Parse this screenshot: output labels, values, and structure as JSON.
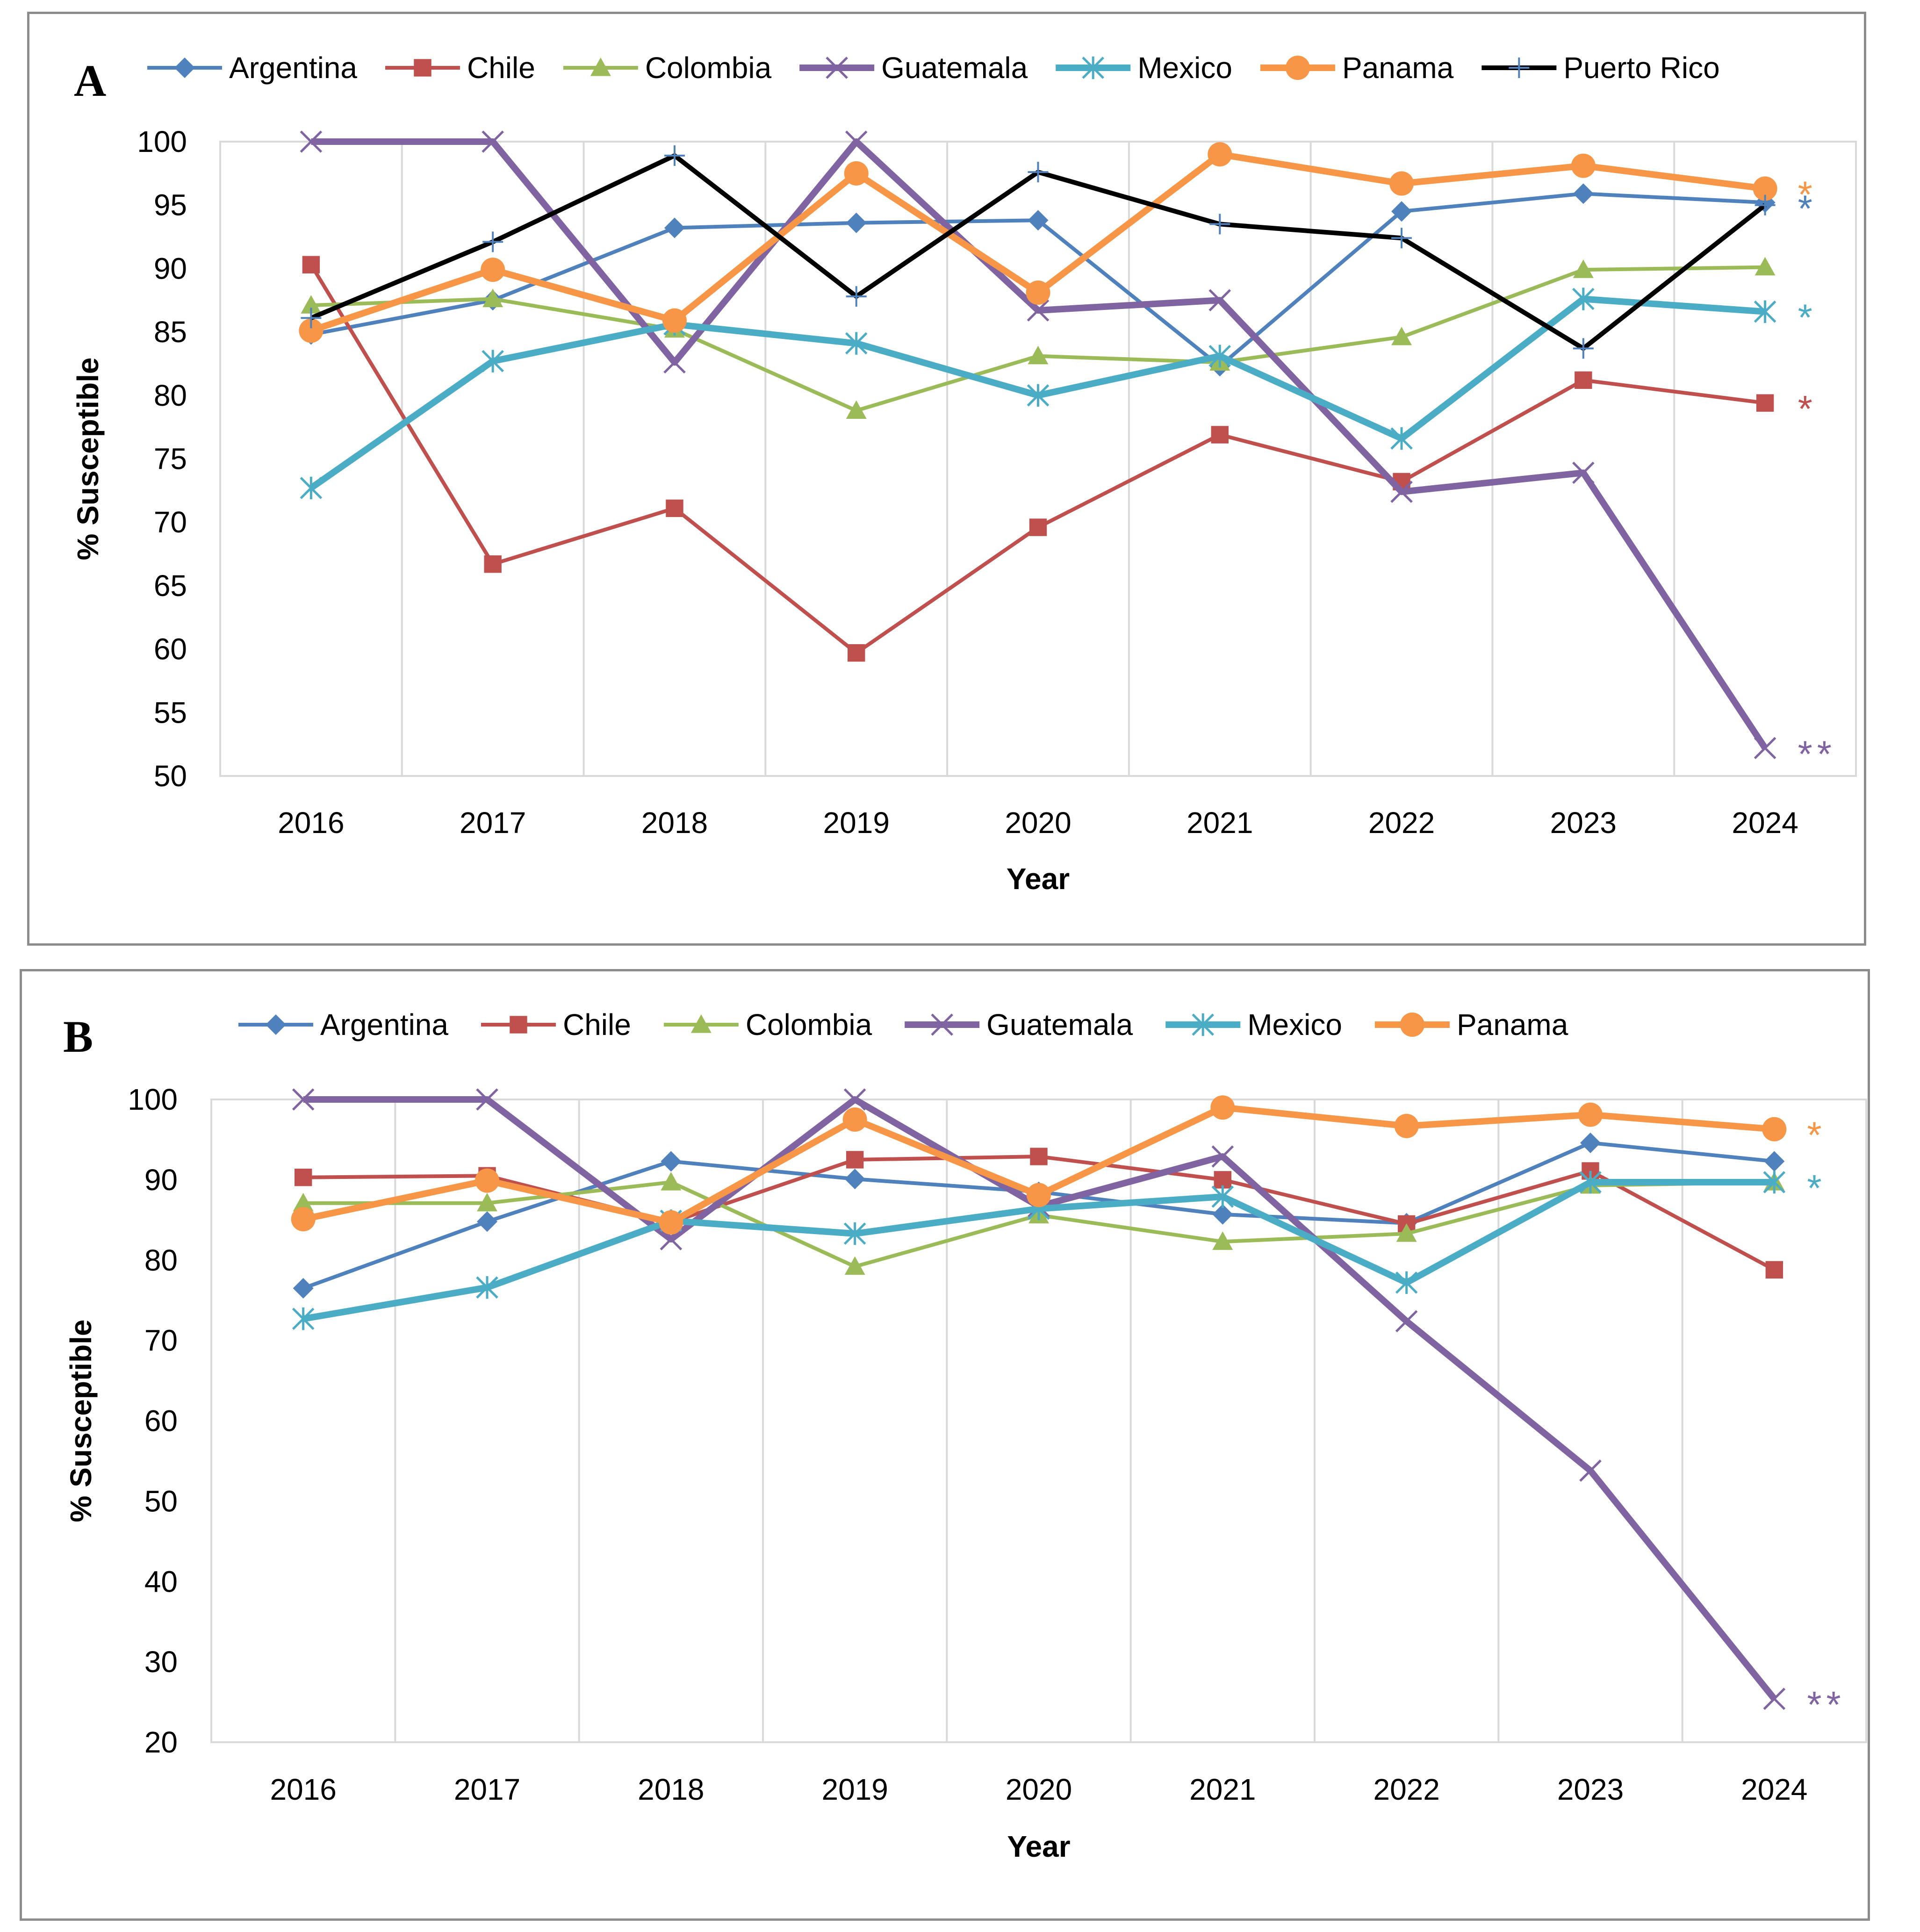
{
  "colors": {
    "Argentina": "#4f81bd",
    "Chile": "#c0504d",
    "Colombia": "#9bbb59",
    "Guatemala": "#8064a2",
    "Mexico": "#4bacc6",
    "Panama": "#f79646",
    "Puerto Rico": "#000000",
    "grid": "#d9d9d9"
  },
  "markers": {
    "Argentina": "diamond-icon",
    "Chile": "square-icon",
    "Colombia": "triangle-icon",
    "Guatemala": "x-cross-icon",
    "Mexico": "asterisk-icon",
    "Panama": "circle-icon",
    "Puerto Rico": "plus-icon"
  },
  "chart_data": [
    {
      "type": "line",
      "panel_label": "A",
      "xlabel": "Year",
      "ylabel": "% Susceptible",
      "ylim": [
        50,
        100
      ],
      "yticks": [
        50,
        55,
        60,
        65,
        70,
        75,
        80,
        85,
        90,
        95,
        100
      ],
      "categories": [
        "2016",
        "2017",
        "2018",
        "2019",
        "2020",
        "2021",
        "2022",
        "2023",
        "2024"
      ],
      "legend": "top",
      "series": [
        {
          "name": "Argentina",
          "values": [
            84.8,
            87.5,
            93.2,
            93.6,
            93.8,
            82.3,
            94.5,
            95.9,
            95.2
          ]
        },
        {
          "name": "Chile",
          "values": [
            90.3,
            66.7,
            71.1,
            59.7,
            69.6,
            76.9,
            73.2,
            81.2,
            79.4
          ]
        },
        {
          "name": "Colombia",
          "values": [
            87.1,
            87.6,
            85.2,
            78.8,
            83.1,
            82.6,
            84.6,
            89.9,
            90.1
          ]
        },
        {
          "name": "Guatemala",
          "values": [
            100,
            100,
            82.6,
            100,
            86.7,
            87.5,
            72.4,
            73.9,
            52.2
          ]
        },
        {
          "name": "Mexico",
          "values": [
            72.7,
            82.7,
            85.6,
            84.1,
            80.0,
            83.1,
            76.6,
            87.6,
            86.6
          ]
        },
        {
          "name": "Panama",
          "values": [
            85.1,
            89.9,
            85.9,
            97.5,
            88.1,
            99.0,
            96.7,
            98.1,
            96.3
          ]
        },
        {
          "name": "Puerto Rico",
          "values": [
            86.1,
            92.1,
            98.9,
            87.8,
            97.6,
            93.5,
            92.4,
            83.7,
            95.0
          ]
        }
      ],
      "annotations": [
        {
          "text": "*",
          "series": "Panama"
        },
        {
          "text": "*",
          "series": "Argentina"
        },
        {
          "text": "*",
          "series": "Mexico"
        },
        {
          "text": "*",
          "series": "Chile"
        },
        {
          "text": "**",
          "series": "Guatemala"
        }
      ]
    },
    {
      "type": "line",
      "panel_label": "B",
      "xlabel": "Year",
      "ylabel": "% Susceptible",
      "ylim": [
        20,
        100
      ],
      "yticks": [
        20,
        30,
        40,
        50,
        60,
        70,
        80,
        90,
        100
      ],
      "categories": [
        "2016",
        "2017",
        "2018",
        "2019",
        "2020",
        "2021",
        "2022",
        "2023",
        "2024"
      ],
      "legend": "top",
      "series": [
        {
          "name": "Argentina",
          "values": [
            76.5,
            84.8,
            92.3,
            90.1,
            88.5,
            85.7,
            84.6,
            94.6,
            92.3
          ]
        },
        {
          "name": "Chile",
          "values": [
            90.3,
            90.5,
            84.7,
            92.5,
            92.9,
            90.0,
            84.5,
            91.1,
            78.8
          ]
        },
        {
          "name": "Colombia",
          "values": [
            87.1,
            87.1,
            89.7,
            79.2,
            85.6,
            82.3,
            83.3,
            89.3,
            89.7
          ]
        },
        {
          "name": "Guatemala",
          "values": [
            100,
            100,
            82.6,
            100,
            86.7,
            92.9,
            72.4,
            53.8,
            25.4
          ]
        },
        {
          "name": "Mexico",
          "values": [
            72.7,
            76.6,
            84.9,
            83.3,
            86.4,
            87.9,
            77.2,
            89.7,
            89.7
          ]
        },
        {
          "name": "Panama",
          "values": [
            85.1,
            89.9,
            84.7,
            97.5,
            88.1,
            99.0,
            96.7,
            98.1,
            96.3
          ]
        }
      ],
      "annotations": [
        {
          "text": "*",
          "series": "Panama"
        },
        {
          "text": "*",
          "series": "Mexico"
        },
        {
          "text": "**",
          "series": "Guatemala"
        }
      ]
    }
  ]
}
